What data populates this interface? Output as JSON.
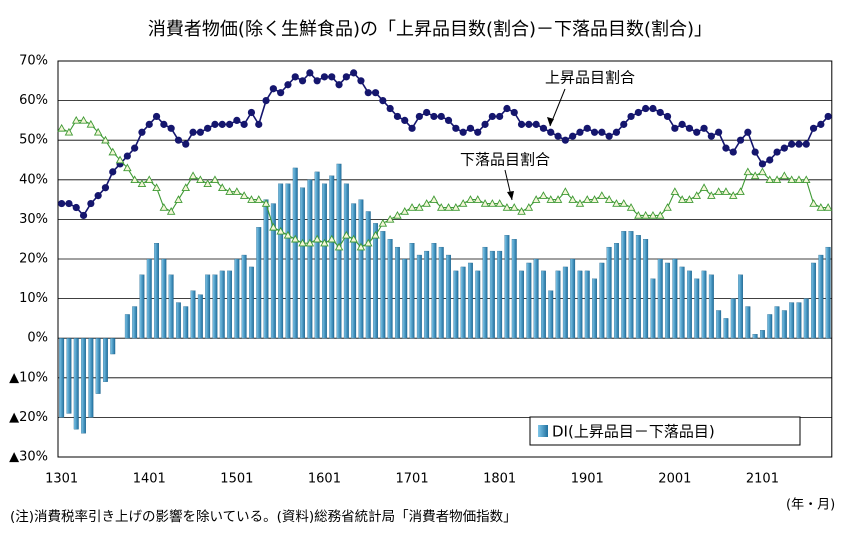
{
  "chart_data": {
    "type": "combo",
    "title": "消費者物価(除く生鮮食品)の「上昇品目数(割合)－下落品目数(割合)」",
    "footnote": "(注)消費税率引き上げの影響を除いている。(資料)総務省統計局「消費者物価指数」",
    "x_label": "(年・月)",
    "categories": [
      "1301",
      null,
      null,
      null,
      null,
      null,
      null,
      null,
      null,
      null,
      null,
      null,
      "1401",
      null,
      null,
      null,
      null,
      null,
      null,
      null,
      null,
      null,
      null,
      null,
      "1501",
      null,
      null,
      null,
      null,
      null,
      null,
      null,
      null,
      null,
      null,
      null,
      "1601",
      null,
      null,
      null,
      null,
      null,
      null,
      null,
      null,
      null,
      null,
      null,
      "1701",
      null,
      null,
      null,
      null,
      null,
      null,
      null,
      null,
      null,
      null,
      null,
      "1801",
      null,
      null,
      null,
      null,
      null,
      null,
      null,
      null,
      null,
      null,
      null,
      "1901",
      null,
      null,
      null,
      null,
      null,
      null,
      null,
      null,
      null,
      null,
      null,
      "2001",
      null,
      null,
      null,
      null,
      null,
      null,
      null,
      null,
      null,
      null,
      null,
      "2101",
      null,
      null,
      null,
      null,
      null,
      null,
      null,
      null,
      null
    ],
    "ylim": [
      -30,
      70
    ],
    "yticks": [
      {
        "value": -30,
        "label": "▲30%"
      },
      {
        "value": -20,
        "label": "▲20%"
      },
      {
        "value": -10,
        "label": "▲10%"
      },
      {
        "value": 0,
        "label": "0%"
      },
      {
        "value": 10,
        "label": "10%"
      },
      {
        "value": 20,
        "label": "20%"
      },
      {
        "value": 30,
        "label": "30%"
      },
      {
        "value": 40,
        "label": "40%"
      },
      {
        "value": 50,
        "label": "50%"
      },
      {
        "value": 60,
        "label": "60%"
      },
      {
        "value": 70,
        "label": "70%"
      }
    ],
    "grid": true,
    "legend": "lower right",
    "series": [
      {
        "name": "DI(上昇品目－下落品目)",
        "type": "bar",
        "color": "#2b8cc4",
        "values": [
          -20,
          -19,
          -23,
          -24,
          -20,
          -14,
          -11,
          -4,
          0,
          6,
          8,
          16,
          20,
          24,
          20,
          16,
          9,
          8,
          12,
          11,
          16,
          16,
          17,
          17,
          20,
          21,
          18,
          28,
          35,
          34,
          39,
          39,
          43,
          38,
          40,
          42,
          39,
          41,
          44,
          39,
          34,
          35,
          32,
          29,
          27,
          25,
          23,
          20,
          24,
          21,
          22,
          24,
          23,
          21,
          17,
          18,
          19,
          17,
          23,
          22,
          22,
          26,
          25,
          17,
          19,
          20,
          17,
          12,
          17,
          18,
          20,
          17,
          17,
          15,
          19,
          23,
          24,
          27,
          27,
          26,
          25,
          15,
          20,
          19,
          20,
          18,
          17,
          15,
          17,
          16,
          7,
          5,
          10,
          16,
          8,
          1,
          2,
          6,
          8,
          7,
          9,
          9,
          10,
          19,
          21,
          23
        ]
      },
      {
        "name": "上昇品目割合",
        "type": "line",
        "color": "#15166e",
        "values": [
          34,
          34,
          33,
          31,
          34,
          36,
          38,
          42,
          44,
          46,
          48,
          52,
          54,
          56,
          54,
          53,
          50,
          49,
          52,
          52,
          53,
          54,
          54,
          54,
          55,
          54,
          57,
          54,
          60,
          63,
          62,
          64,
          66,
          65,
          67,
          65,
          66,
          66,
          64,
          66,
          67,
          65,
          62,
          62,
          60,
          58,
          56,
          55,
          53,
          56,
          57,
          56,
          56,
          55,
          53,
          52,
          53,
          52,
          54,
          56,
          56,
          58,
          57,
          54,
          54,
          54,
          53,
          52,
          51,
          50,
          51,
          52,
          53,
          52,
          52,
          51,
          52,
          54,
          56,
          57,
          58,
          58,
          57,
          56,
          53,
          54,
          53,
          52,
          53,
          51,
          52,
          48,
          47,
          50,
          52,
          47,
          44,
          45,
          47,
          48,
          49,
          49,
          49,
          53,
          54,
          56
        ]
      },
      {
        "name": "下落品目割合",
        "type": "line",
        "color": "#3f9a35",
        "values": [
          53,
          52,
          55,
          55,
          54,
          52,
          50,
          47,
          45,
          43,
          40,
          39,
          40,
          38,
          33,
          32,
          35,
          38,
          41,
          40,
          39,
          40,
          38,
          37,
          37,
          36,
          35,
          35,
          34,
          28,
          27,
          26,
          25,
          24,
          24,
          25,
          24,
          25,
          23,
          26,
          25,
          23,
          24,
          26,
          29,
          30,
          31,
          32,
          33,
          33,
          34,
          35,
          33,
          33,
          33,
          34,
          35,
          35,
          34,
          34,
          34,
          33,
          33,
          32,
          33,
          35,
          36,
          35,
          35,
          37,
          35,
          34,
          35,
          35,
          36,
          35,
          34,
          34,
          33,
          31,
          31,
          31,
          31,
          33,
          37,
          35,
          35,
          36,
          38,
          36,
          37,
          37,
          36,
          37,
          42,
          41,
          42,
          40,
          40,
          41,
          40,
          40,
          40,
          34,
          33,
          33
        ]
      }
    ]
  }
}
